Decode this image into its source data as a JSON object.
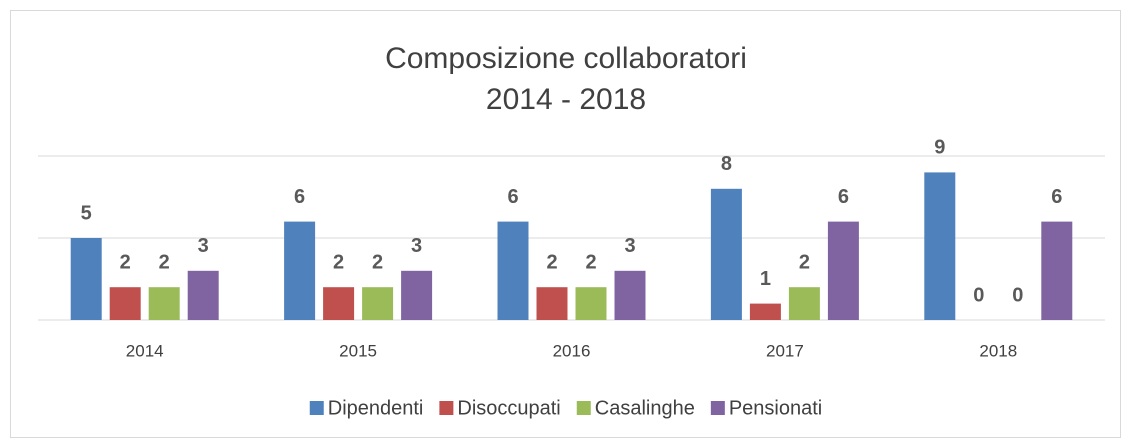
{
  "chart_data": {
    "type": "bar",
    "title": [
      "Composizione collaboratori",
      "2014 - 2018"
    ],
    "categories": [
      "2014",
      "2015",
      "2016",
      "2017",
      "2018"
    ],
    "series": [
      {
        "name": "Dipendenti",
        "color": "#4f81bd",
        "values": [
          5,
          6,
          6,
          8,
          9
        ]
      },
      {
        "name": "Disoccupati",
        "color": "#c0504d",
        "values": [
          2,
          2,
          2,
          1,
          0
        ]
      },
      {
        "name": "Casalinghe",
        "color": "#9bbb59",
        "values": [
          2,
          2,
          2,
          2,
          0
        ]
      },
      {
        "name": "Pensionati",
        "color": "#8064a2",
        "values": [
          3,
          3,
          3,
          6,
          6
        ]
      }
    ],
    "ylim": [
      0,
      10
    ],
    "yticks": [
      0,
      5,
      10
    ],
    "grid": true,
    "legend": "bottom"
  }
}
